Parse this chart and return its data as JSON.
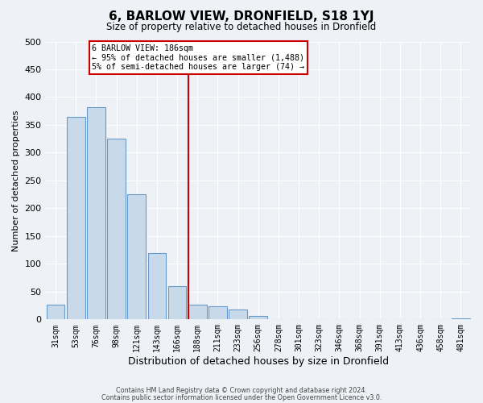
{
  "title": "6, BARLOW VIEW, DRONFIELD, S18 1YJ",
  "subtitle": "Size of property relative to detached houses in Dronfield",
  "xlabel": "Distribution of detached houses by size in Dronfield",
  "ylabel": "Number of detached properties",
  "bar_labels": [
    "31sqm",
    "53sqm",
    "76sqm",
    "98sqm",
    "121sqm",
    "143sqm",
    "166sqm",
    "188sqm",
    "211sqm",
    "233sqm",
    "256sqm",
    "278sqm",
    "301sqm",
    "323sqm",
    "346sqm",
    "368sqm",
    "391sqm",
    "413sqm",
    "436sqm",
    "458sqm",
    "481sqm"
  ],
  "bar_values": [
    27,
    365,
    382,
    325,
    225,
    120,
    60,
    27,
    23,
    18,
    6,
    1,
    0,
    0,
    0,
    0,
    0,
    0,
    0,
    0,
    2
  ],
  "bar_color": "#c8daea",
  "bar_edge_color": "#6699cc",
  "vline_color": "#cc0000",
  "annotation_title": "6 BARLOW VIEW: 186sqm",
  "annotation_line1": "← 95% of detached houses are smaller (1,488)",
  "annotation_line2": "5% of semi-detached houses are larger (74) →",
  "annotation_box_color": "#ffffff",
  "annotation_box_edge_color": "#cc0000",
  "ylim": [
    0,
    500
  ],
  "yticks": [
    0,
    50,
    100,
    150,
    200,
    250,
    300,
    350,
    400,
    450,
    500
  ],
  "footer1": "Contains HM Land Registry data © Crown copyright and database right 2024.",
  "footer2": "Contains public sector information licensed under the Open Government Licence v3.0.",
  "background_color": "#eef2f7",
  "grid_color": "#ffffff"
}
